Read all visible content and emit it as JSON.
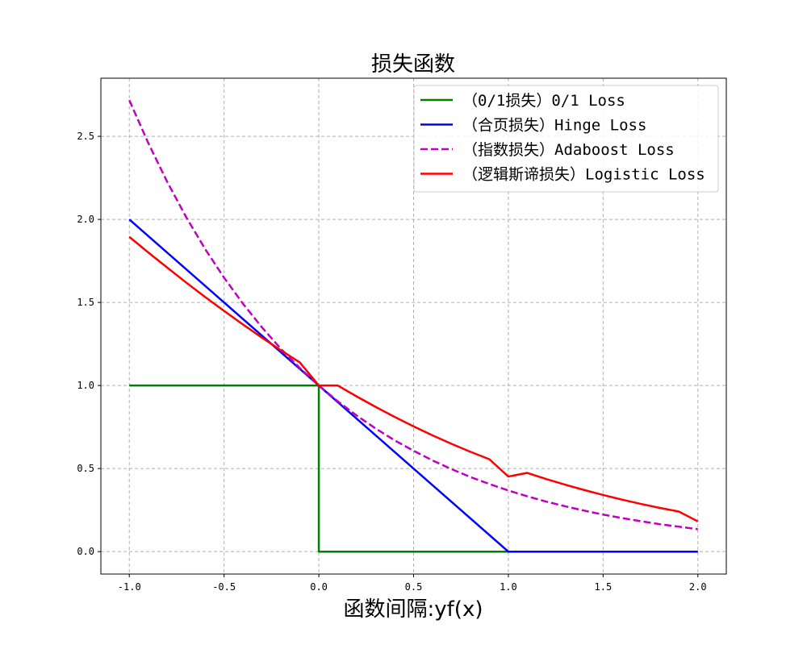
{
  "chart_data": {
    "type": "line",
    "title": "损失函数",
    "xlabel": "函数间隔:yf(x)",
    "ylabel": "",
    "xlim": [
      -1.15,
      2.15
    ],
    "ylim": [
      -0.135,
      2.85
    ],
    "x_ticks": [
      -1.0,
      -0.5,
      0.0,
      0.5,
      1.0,
      1.5,
      2.0
    ],
    "x_tick_labels": [
      "-1.0",
      "-0.5",
      "0.0",
      "0.5",
      "1.0",
      "1.5",
      "2.0"
    ],
    "y_ticks": [
      0.0,
      0.5,
      1.0,
      1.5,
      2.0,
      2.5
    ],
    "y_tick_labels": [
      "0.0",
      "0.5",
      "1.0",
      "1.5",
      "2.0",
      "2.5"
    ],
    "grid": true,
    "legend_position": "top-right",
    "series": [
      {
        "name": "（0/1损失）0/1 Loss",
        "color": "#008000",
        "dash": "solid",
        "x": [
          -1.0,
          0.0,
          0.0,
          2.0
        ],
        "y": [
          1.0,
          1.0,
          0.0,
          0.0
        ]
      },
      {
        "name": "（合页损失）Hinge Loss",
        "color": "#0000ff",
        "dash": "solid",
        "x": [
          -1.0,
          1.0,
          2.0
        ],
        "y": [
          2.0,
          0.0,
          0.0
        ]
      },
      {
        "name": "（指数损失）Adaboost Loss",
        "color": "#bf00bf",
        "dash": "dashed",
        "x": [
          -1.0,
          -0.9,
          -0.8,
          -0.7,
          -0.6,
          -0.5,
          -0.4,
          -0.3,
          -0.2,
          -0.1,
          0.0,
          0.1,
          0.2,
          0.3,
          0.4,
          0.5,
          0.6,
          0.7,
          0.8,
          0.9,
          1.0,
          1.1,
          1.2,
          1.3,
          1.4,
          1.5,
          1.6,
          1.7,
          1.8,
          1.9,
          2.0
        ],
        "y": [
          2.718,
          2.46,
          2.226,
          2.014,
          1.822,
          1.649,
          1.492,
          1.35,
          1.221,
          1.105,
          1.0,
          0.905,
          0.819,
          0.741,
          0.67,
          0.607,
          0.549,
          0.497,
          0.449,
          0.407,
          0.368,
          0.333,
          0.301,
          0.273,
          0.247,
          0.223,
          0.202,
          0.183,
          0.165,
          0.15,
          0.135
        ]
      },
      {
        "name": "（逻辑斯谛损失）Logistic Loss",
        "color": "#ff0000",
        "dash": "solid",
        "x": [
          -1.0,
          -0.9,
          -0.8,
          -0.7,
          -0.6,
          -0.5,
          -0.4,
          -0.3,
          -0.2,
          -0.1,
          0.0,
          0.1,
          0.2,
          0.3,
          0.4,
          0.5,
          0.6,
          0.7,
          0.8,
          0.9,
          1.0,
          1.1,
          1.2,
          1.3,
          1.4,
          1.5,
          1.6,
          1.7,
          1.8,
          1.9,
          2.0
        ],
        "y": [
          1.895,
          1.801,
          1.71,
          1.62,
          1.533,
          1.449,
          1.367,
          1.288,
          1.212,
          1.139,
          1.0,
          1.0,
          0.934,
          0.871,
          0.811,
          0.754,
          0.7,
          0.649,
          0.601,
          0.556,
          0.452,
          0.474,
          0.437,
          0.403,
          0.371,
          0.341,
          0.313,
          0.287,
          0.263,
          0.241,
          0.182
        ]
      }
    ]
  }
}
